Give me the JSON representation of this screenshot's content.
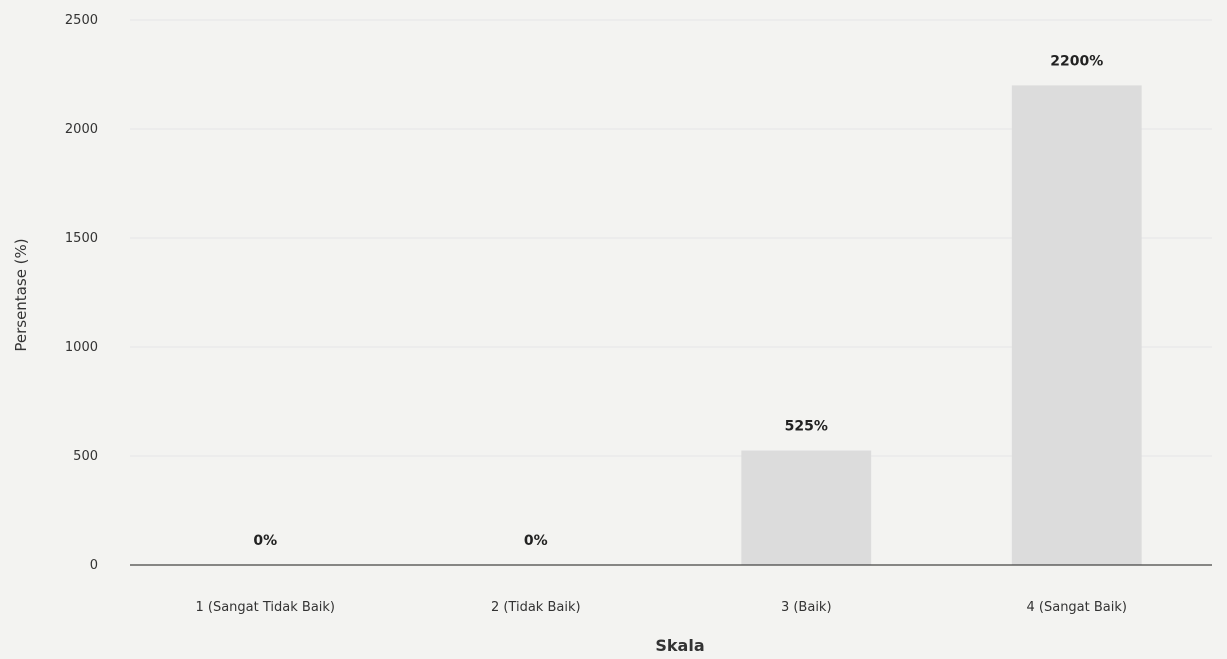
{
  "chart_data": {
    "type": "bar",
    "title": "",
    "xlabel": "Skala",
    "ylabel": "Persentase (%)",
    "categories": [
      "1 (Sangat Tidak Baik)",
      "2 (Tidak Baik)",
      "3 (Baik)",
      "4 (Sangat Baik)"
    ],
    "values": [
      0,
      0,
      525,
      2200
    ],
    "data_labels": [
      "0%",
      "0%",
      "525%",
      "2200%"
    ],
    "ylim": [
      0,
      2500
    ],
    "yticks": [
      "0",
      "500",
      "1000",
      "1500",
      "2000",
      "2500"
    ],
    "grid": true,
    "legend": "none",
    "bar_color": "#dcdcdc",
    "grid_color": "#e6e6e6",
    "axis_color": "#444444"
  }
}
